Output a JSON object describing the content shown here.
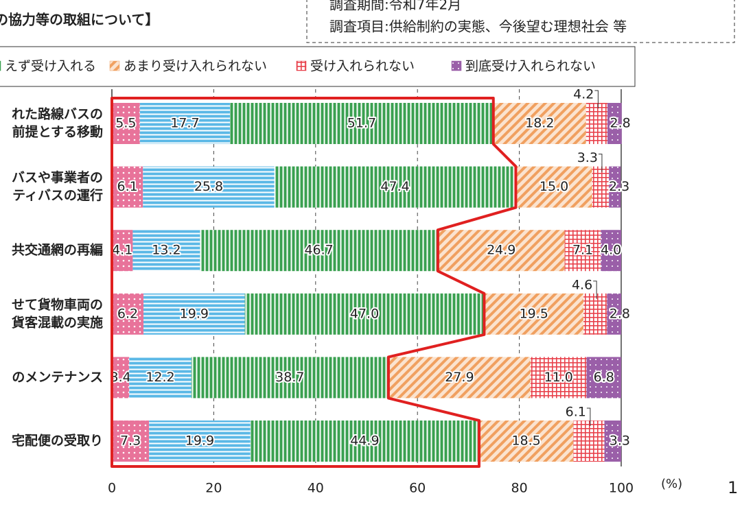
{
  "chart_data": {
    "type": "stacked-barh",
    "title": "の協力等の取組について】",
    "notes": [
      "調査期間:令和7年2月",
      "調査項目:供給制約の実態、今後望む理想社会 等"
    ],
    "categories": [
      [
        "れた路線バスの",
        "前提とする移動"
      ],
      [
        "バスや事業者の",
        "ティバスの運行"
      ],
      [
        "共交通網の再編"
      ],
      [
        "せて貨物車両の",
        "貨客混載の実施"
      ],
      [
        "のメンテナンス"
      ],
      [
        "宅配便の受取り"
      ]
    ],
    "series": [
      {
        "color": "#e8739a",
        "values": [
          5.5,
          6.1,
          4.1,
          6.2,
          3.4,
          7.3
        ],
        "value_labels": [
          "5.5",
          "6.1",
          "4.1",
          "6.2",
          "3.4",
          "7.3"
        ]
      },
      {
        "color": "#5bb8e6",
        "values": [
          17.7,
          25.8,
          13.2,
          19.9,
          12.2,
          19.9
        ],
        "value_labels": [
          "17.7",
          "25.8",
          "13.2",
          "19.9",
          "12.2",
          "19.9"
        ]
      },
      {
        "name": "えず受け入れる",
        "color": "#3aa050",
        "values": [
          51.7,
          47.4,
          46.7,
          47.0,
          38.7,
          44.9
        ],
        "value_labels": [
          "51.7",
          "47.4",
          "46.7",
          "47.0",
          "38.7",
          "44.9"
        ]
      },
      {
        "name": "あまり受け入れられない",
        "color": "#f0a060",
        "values": [
          18.2,
          15.0,
          24.9,
          19.5,
          27.9,
          18.5
        ],
        "value_labels": [
          "18.2",
          "15.0",
          "24.9",
          "19.5",
          "27.9",
          "18.5"
        ]
      },
      {
        "name": "受け入れられない",
        "color": "#e8404a",
        "values": [
          4.2,
          3.3,
          7.1,
          4.6,
          11.0,
          6.1
        ],
        "value_labels": [
          "4.2",
          "3.3",
          "7.1",
          "4.6",
          "11.0",
          "6.1"
        ]
      },
      {
        "name": "到底受け入れられない",
        "color": "#9a5fa8",
        "values": [
          2.8,
          2.3,
          4.0,
          2.8,
          6.8,
          3.3
        ],
        "value_labels": [
          "2.8",
          "2.3",
          "4.0",
          "2.8",
          "6.8",
          "3.3"
        ]
      }
    ],
    "xlim": [
      0,
      100
    ],
    "xticks": [
      0,
      20,
      40,
      60,
      80,
      100
    ],
    "x_unit": "(%)",
    "highlight_color": "#e02020",
    "page_number": "1"
  }
}
